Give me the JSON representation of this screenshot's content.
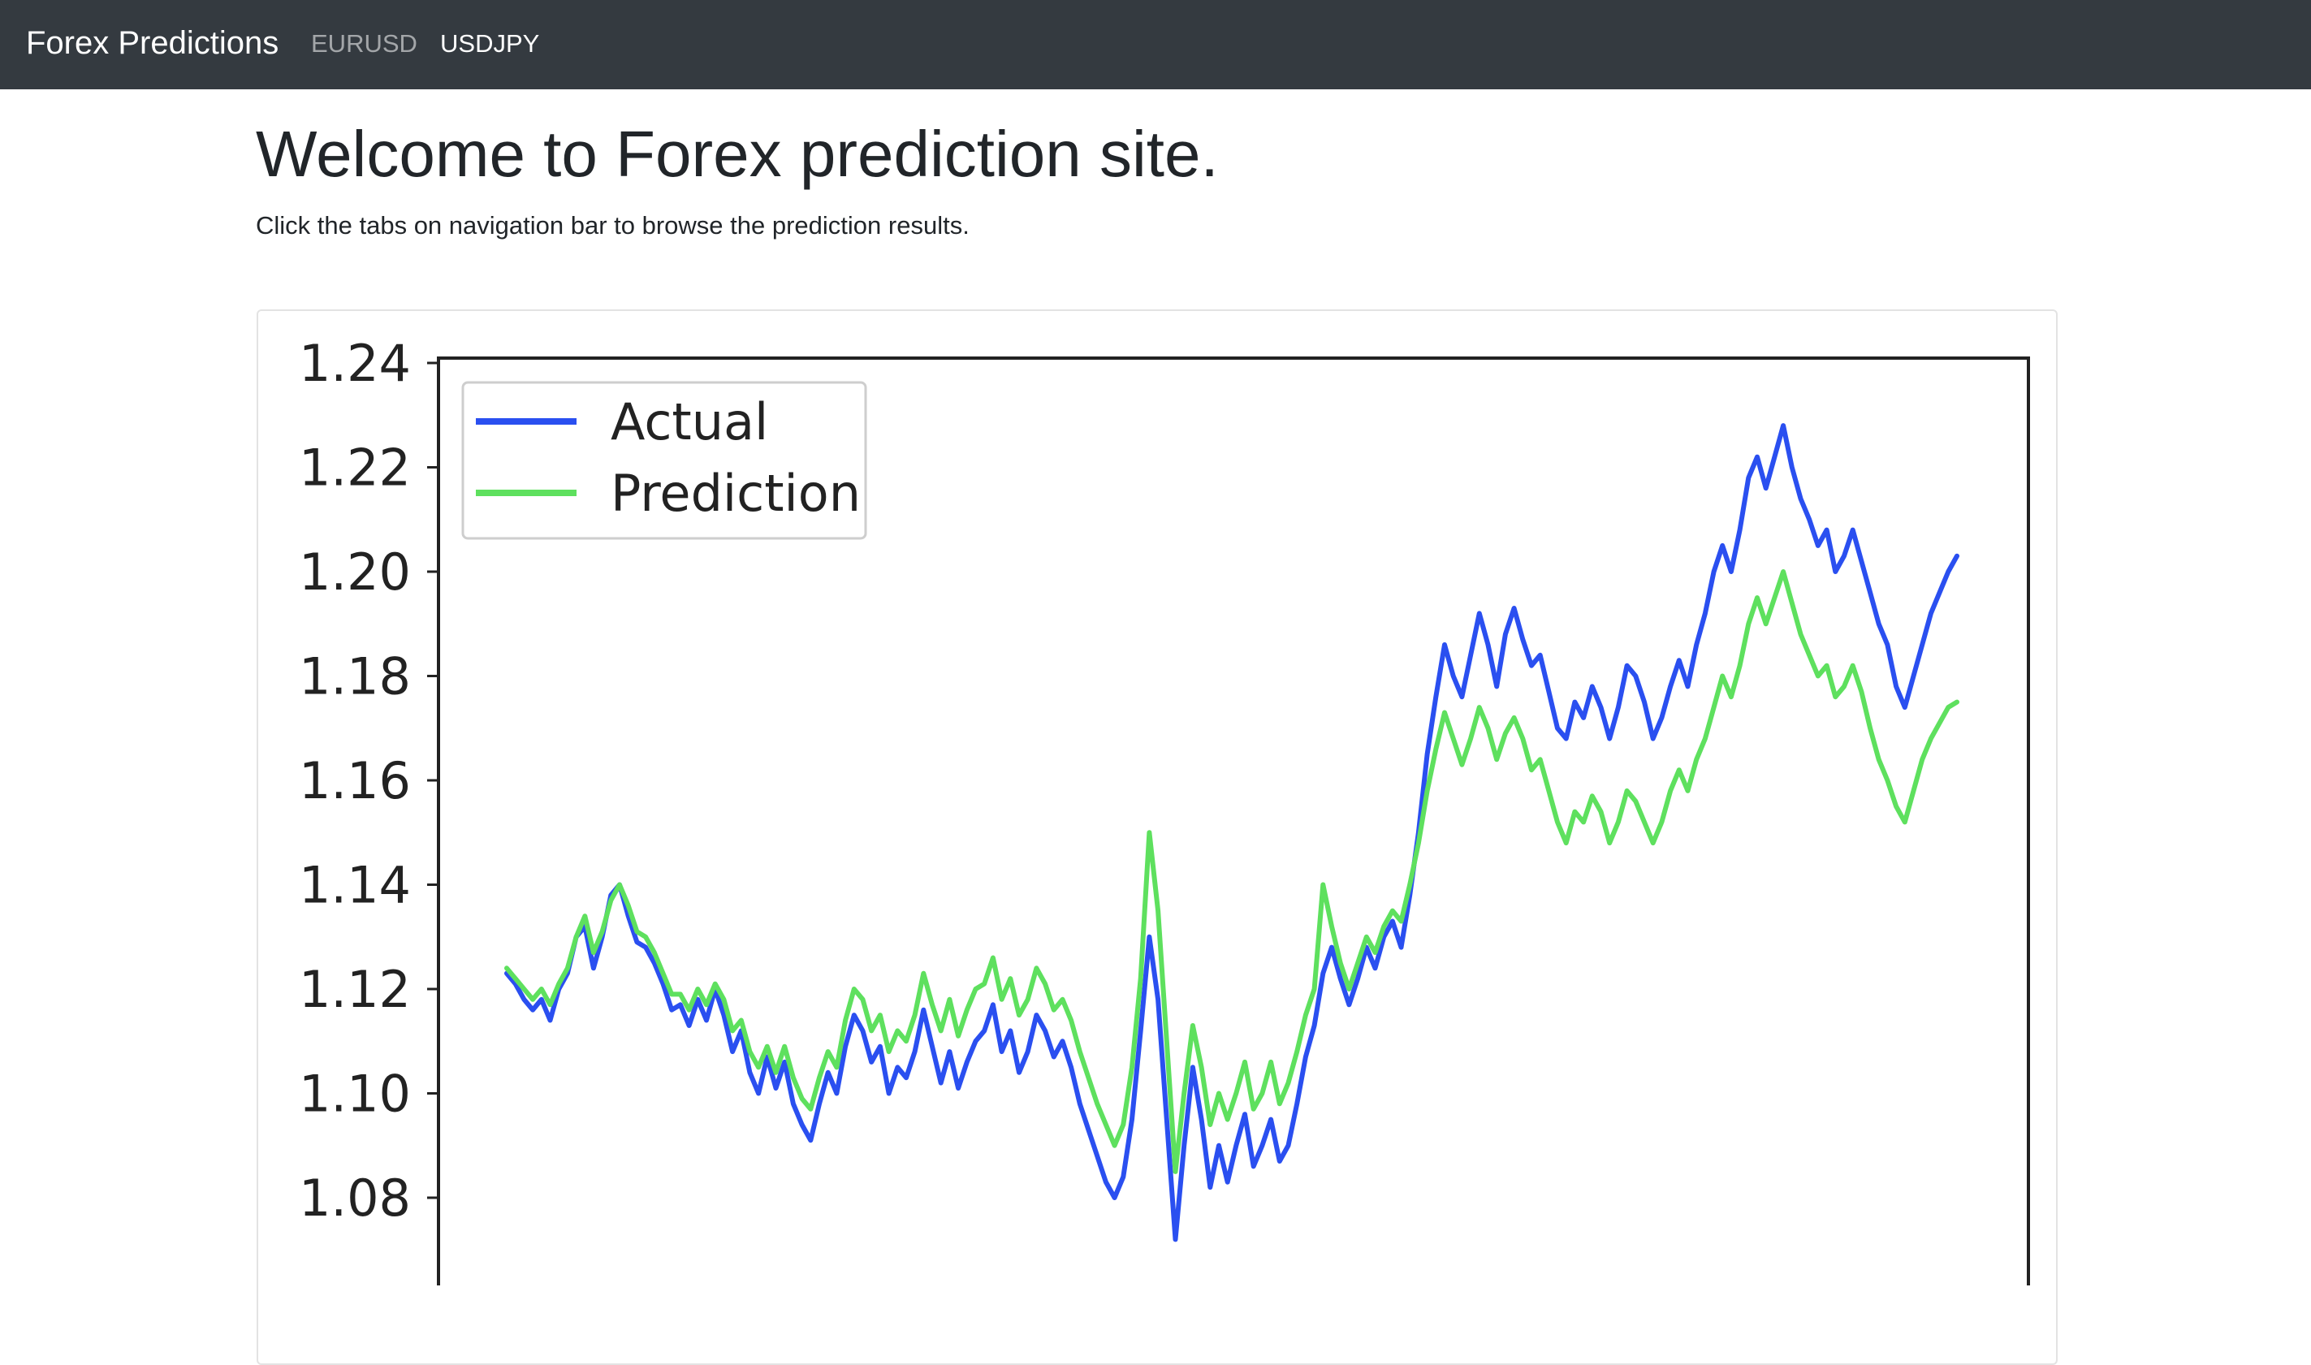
{
  "navbar": {
    "brand": "Forex Predictions",
    "links": [
      "EURUSD",
      "USDJPY"
    ]
  },
  "main": {
    "title": "Welcome to Forex prediction site.",
    "subtitle": "Click the tabs on navigation bar to browse the prediction results."
  },
  "colors": {
    "navbar_bg": "#343a40",
    "actual": "#2a4ff0",
    "prediction": "#5ee05e"
  },
  "chart_data": {
    "type": "line",
    "title": "",
    "xlabel": "",
    "ylabel": "",
    "ylim": [
      1.068,
      1.245
    ],
    "yticks": [
      "1.24",
      "1.22",
      "1.20",
      "1.18",
      "1.16",
      "1.14",
      "1.12",
      "1.10",
      "1.08"
    ],
    "legend_position": "top-left",
    "grid": false,
    "series": [
      {
        "name": "Actual",
        "color": "#2a4ff0",
        "values": [
          1.123,
          1.121,
          1.118,
          1.116,
          1.118,
          1.114,
          1.12,
          1.123,
          1.13,
          1.132,
          1.124,
          1.13,
          1.138,
          1.14,
          1.134,
          1.129,
          1.128,
          1.125,
          1.121,
          1.116,
          1.117,
          1.113,
          1.118,
          1.114,
          1.12,
          1.115,
          1.108,
          1.112,
          1.104,
          1.1,
          1.107,
          1.101,
          1.106,
          1.098,
          1.094,
          1.091,
          1.098,
          1.104,
          1.1,
          1.109,
          1.115,
          1.112,
          1.106,
          1.109,
          1.1,
          1.105,
          1.103,
          1.108,
          1.116,
          1.109,
          1.102,
          1.108,
          1.101,
          1.106,
          1.11,
          1.112,
          1.117,
          1.108,
          1.112,
          1.104,
          1.108,
          1.115,
          1.112,
          1.107,
          1.11,
          1.105,
          1.098,
          1.093,
          1.088,
          1.083,
          1.08,
          1.084,
          1.095,
          1.112,
          1.13,
          1.118,
          1.095,
          1.072,
          1.09,
          1.105,
          1.095,
          1.082,
          1.09,
          1.083,
          1.09,
          1.096,
          1.086,
          1.09,
          1.095,
          1.087,
          1.09,
          1.098,
          1.107,
          1.113,
          1.123,
          1.128,
          1.122,
          1.117,
          1.122,
          1.128,
          1.124,
          1.13,
          1.133,
          1.128,
          1.138,
          1.15,
          1.165,
          1.176,
          1.186,
          1.18,
          1.176,
          1.184,
          1.192,
          1.186,
          1.178,
          1.188,
          1.193,
          1.187,
          1.182,
          1.184,
          1.177,
          1.17,
          1.168,
          1.175,
          1.172,
          1.178,
          1.174,
          1.168,
          1.174,
          1.182,
          1.18,
          1.175,
          1.168,
          1.172,
          1.178,
          1.183,
          1.178,
          1.186,
          1.192,
          1.2,
          1.205,
          1.2,
          1.208,
          1.218,
          1.222,
          1.216,
          1.222,
          1.228,
          1.22,
          1.214,
          1.21,
          1.205,
          1.208,
          1.2,
          1.203,
          1.208,
          1.202,
          1.196,
          1.19,
          1.186,
          1.178,
          1.174,
          1.18,
          1.186,
          1.192,
          1.196,
          1.2,
          1.203
        ]
      },
      {
        "name": "Prediction",
        "color": "#5ee05e",
        "values": [
          1.124,
          1.122,
          1.12,
          1.118,
          1.12,
          1.117,
          1.121,
          1.124,
          1.13,
          1.134,
          1.127,
          1.131,
          1.137,
          1.14,
          1.136,
          1.131,
          1.13,
          1.127,
          1.123,
          1.119,
          1.119,
          1.116,
          1.12,
          1.117,
          1.121,
          1.118,
          1.112,
          1.114,
          1.108,
          1.105,
          1.109,
          1.104,
          1.109,
          1.103,
          1.099,
          1.097,
          1.103,
          1.108,
          1.105,
          1.114,
          1.12,
          1.118,
          1.112,
          1.115,
          1.108,
          1.112,
          1.11,
          1.115,
          1.123,
          1.117,
          1.112,
          1.118,
          1.111,
          1.116,
          1.12,
          1.121,
          1.126,
          1.118,
          1.122,
          1.115,
          1.118,
          1.124,
          1.121,
          1.116,
          1.118,
          1.114,
          1.108,
          1.103,
          1.098,
          1.094,
          1.09,
          1.094,
          1.105,
          1.122,
          1.15,
          1.135,
          1.11,
          1.085,
          1.1,
          1.113,
          1.105,
          1.094,
          1.1,
          1.095,
          1.1,
          1.106,
          1.097,
          1.1,
          1.106,
          1.098,
          1.102,
          1.108,
          1.115,
          1.12,
          1.14,
          1.132,
          1.125,
          1.12,
          1.125,
          1.13,
          1.127,
          1.132,
          1.135,
          1.133,
          1.14,
          1.148,
          1.158,
          1.166,
          1.173,
          1.168,
          1.163,
          1.168,
          1.174,
          1.17,
          1.164,
          1.169,
          1.172,
          1.168,
          1.162,
          1.164,
          1.158,
          1.152,
          1.148,
          1.154,
          1.152,
          1.157,
          1.154,
          1.148,
          1.152,
          1.158,
          1.156,
          1.152,
          1.148,
          1.152,
          1.158,
          1.162,
          1.158,
          1.164,
          1.168,
          1.174,
          1.18,
          1.176,
          1.182,
          1.19,
          1.195,
          1.19,
          1.195,
          1.2,
          1.194,
          1.188,
          1.184,
          1.18,
          1.182,
          1.176,
          1.178,
          1.182,
          1.177,
          1.17,
          1.164,
          1.16,
          1.155,
          1.152,
          1.158,
          1.164,
          1.168,
          1.171,
          1.174,
          1.175
        ]
      }
    ]
  }
}
